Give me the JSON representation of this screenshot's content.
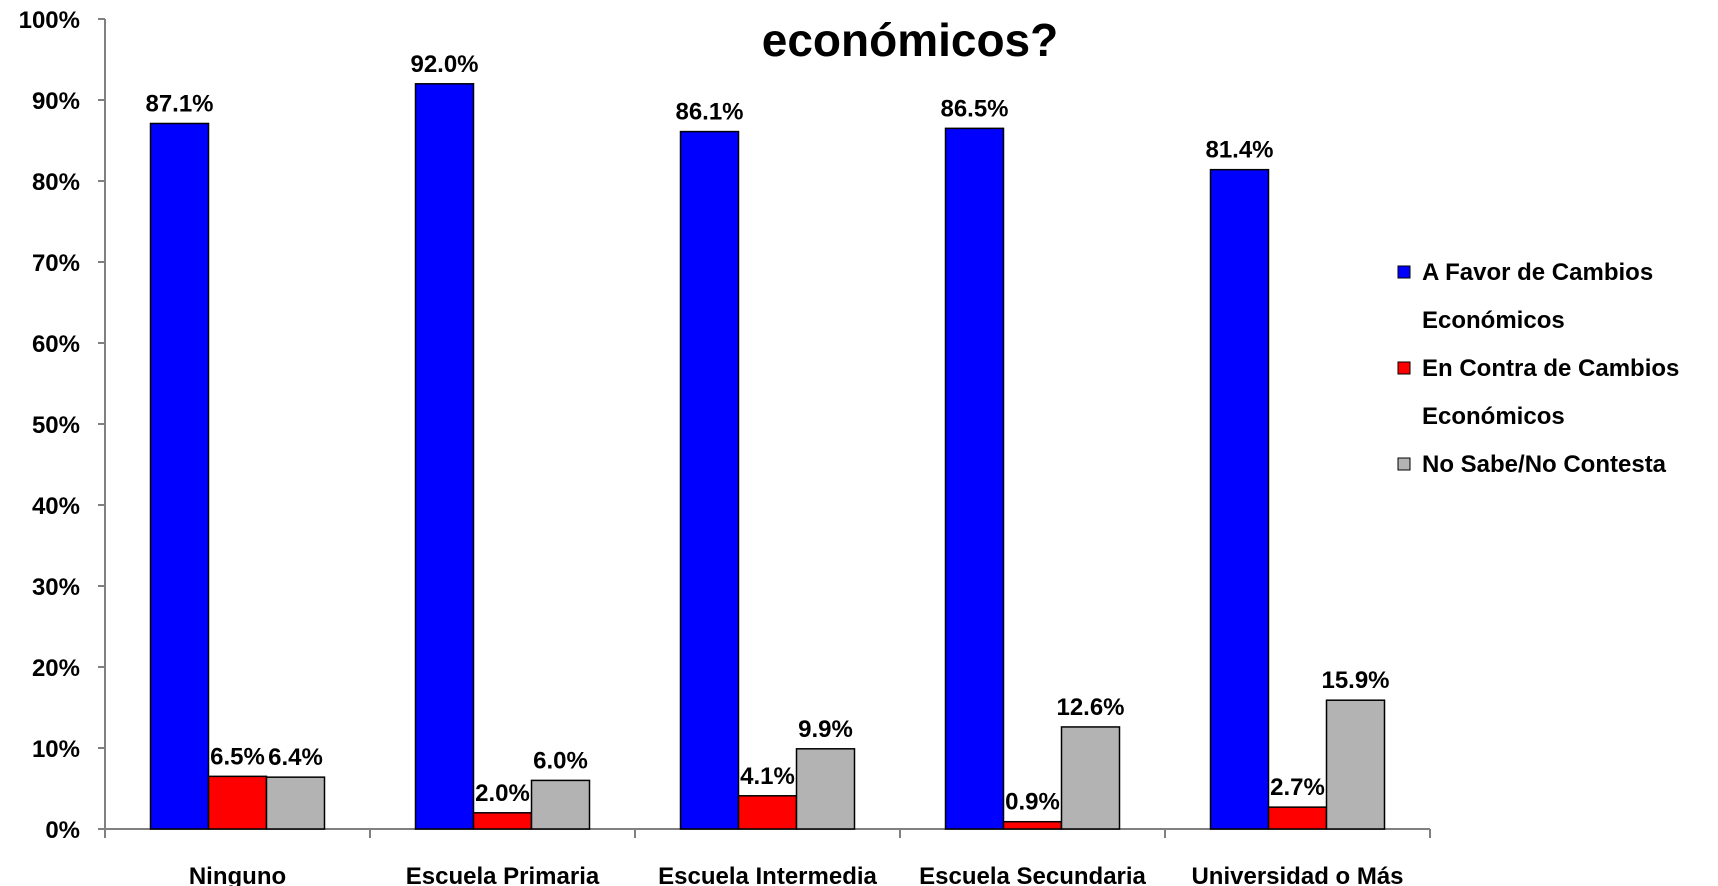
{
  "chart_data": {
    "type": "bar",
    "title_fragment": "económicos?",
    "categories": [
      "Ninguno",
      "Escuela Primaria",
      "Escuela Intermedia",
      "Escuela Secundaria",
      "Universidad o Más"
    ],
    "series": [
      {
        "name": "A Favor de Cambios Económicos",
        "legend_lines": [
          "A Favor de Cambios",
          "Económicos"
        ],
        "color": "#0000FF",
        "values": [
          87.1,
          92.0,
          86.1,
          86.5,
          81.4
        ],
        "labels": [
          "87.1%",
          "92.0%",
          "86.1%",
          "86.5%",
          "81.4%"
        ]
      },
      {
        "name": "En Contra de Cambios Económicos",
        "legend_lines": [
          "En Contra de Cambios",
          "Económicos"
        ],
        "color": "#FF0000",
        "values": [
          6.5,
          2.0,
          4.1,
          0.9,
          2.7
        ],
        "labels": [
          "6.5%",
          "2.0%",
          "4.1%",
          "0.9%",
          "2.7%"
        ]
      },
      {
        "name": "No Sabe/No Contesta",
        "legend_lines": [
          "No Sabe/No Contesta"
        ],
        "color": "#B3B3B3",
        "values": [
          6.4,
          6.0,
          9.9,
          12.6,
          15.9
        ],
        "labels": [
          "6.4%",
          "6.0%",
          "9.9%",
          "12.6%",
          "15.9%"
        ]
      }
    ],
    "y_ticks": [
      "0%",
      "10%",
      "20%",
      "30%",
      "40%",
      "50%",
      "60%",
      "70%",
      "80%",
      "90%",
      "100%"
    ],
    "ylim": [
      0,
      100
    ],
    "title_color": "#333399",
    "grid": false,
    "legend_position": "right"
  }
}
